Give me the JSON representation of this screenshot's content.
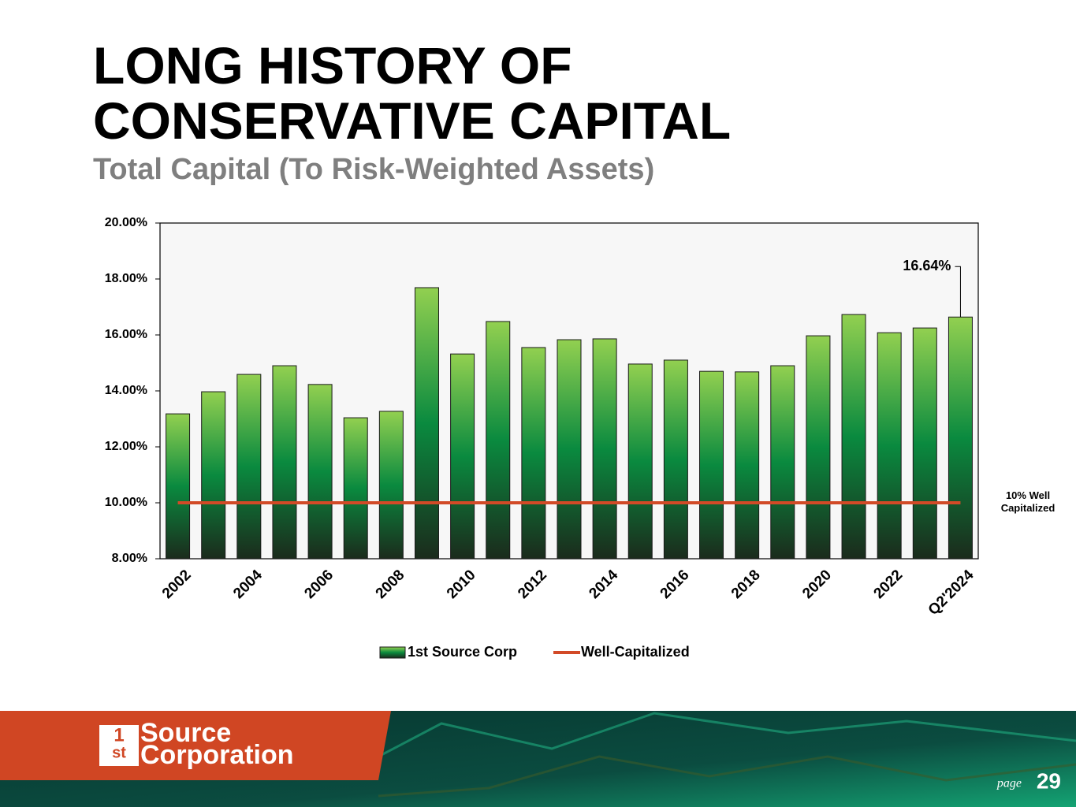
{
  "chart_data": {
    "type": "bar",
    "title": "LONG HISTORY OF CONSERVATIVE CAPITAL",
    "subtitle": "Total Capital (To Risk-Weighted Assets)",
    "categories": [
      "2002",
      null,
      "2004",
      null,
      "2006",
      null,
      "2008",
      null,
      "2010",
      null,
      "2012",
      null,
      "2014",
      null,
      "2016",
      null,
      "2018",
      null,
      "2020",
      null,
      "2022",
      null,
      "Q2'2024"
    ],
    "series": [
      {
        "name": "1st Source Corp",
        "type": "bar",
        "color": "#0a8a3f",
        "values": [
          13.18,
          13.97,
          14.59,
          14.9,
          14.23,
          13.04,
          13.27,
          17.69,
          15.32,
          16.48,
          15.55,
          15.83,
          15.86,
          14.96,
          15.1,
          14.7,
          14.68,
          14.9,
          15.97,
          16.73,
          16.08,
          16.25,
          16.64
        ],
        "value_labels": [
          null,
          null,
          null,
          null,
          null,
          null,
          null,
          null,
          null,
          null,
          null,
          null,
          null,
          null,
          null,
          null,
          null,
          null,
          null,
          null,
          null,
          null,
          "16.64%"
        ]
      },
      {
        "name": "Well-Capitalized",
        "type": "line",
        "color": "#d24a27",
        "values": [
          10,
          10,
          10,
          10,
          10,
          10,
          10,
          10,
          10,
          10,
          10,
          10,
          10,
          10,
          10,
          10,
          10,
          10,
          10,
          10,
          10,
          10,
          10
        ]
      }
    ],
    "annotation": "10% Well Capitalized",
    "ylim": [
      8,
      20
    ],
    "yticks": [
      {
        "value": 8,
        "label": "8.00%"
      },
      {
        "value": 10,
        "label": "10.00%"
      },
      {
        "value": 12,
        "label": "12.00%"
      },
      {
        "value": 14,
        "label": "14.00%"
      },
      {
        "value": 16,
        "label": "16.00%"
      },
      {
        "value": 18,
        "label": "18.00%"
      },
      {
        "value": 20,
        "label": "20.00%"
      }
    ],
    "grid": false,
    "legend": "bottom"
  },
  "footer": {
    "logo_mark": "1",
    "logo_sup": "st",
    "logo_line1": "Source",
    "logo_line2": "Corporation",
    "page_word": "page",
    "page_number": "29"
  }
}
